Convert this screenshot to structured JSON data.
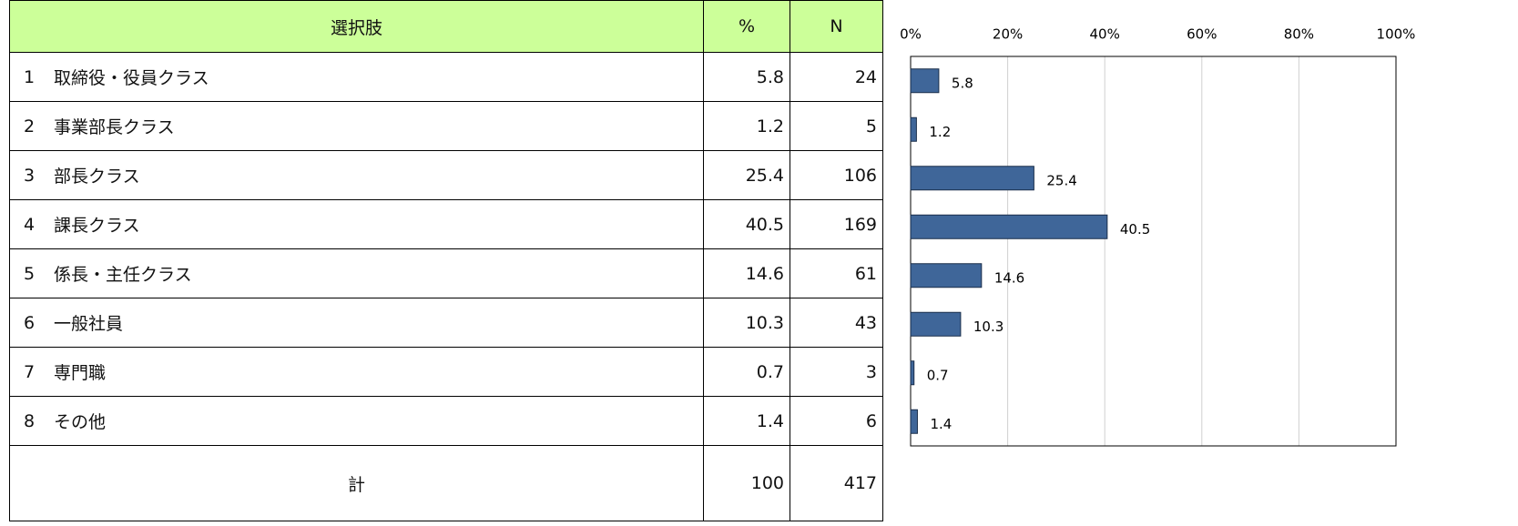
{
  "table": {
    "headers": [
      "選択肢",
      "%",
      "N"
    ],
    "rows": [
      {
        "no": 1,
        "label": "取締役・役員クラス",
        "n": 24
      },
      {
        "no": 2,
        "label": "事業部長クラス",
        "n": 5
      },
      {
        "no": 3,
        "label": "部長クラス",
        "n": 106
      },
      {
        "no": 4,
        "label": "課長クラス",
        "n": 169
      },
      {
        "no": 5,
        "label": "係長・主任クラス",
        "n": 61
      },
      {
        "no": 6,
        "label": "一般社員",
        "n": 43
      },
      {
        "no": 7,
        "label": "専門職",
        "n": 3
      },
      {
        "no": 8,
        "label": "その他",
        "n": 6
      }
    ],
    "total": {
      "label": "計",
      "percent": 100,
      "n": 417
    }
  },
  "chart_data": {
    "type": "bar",
    "orientation": "horizontal",
    "values": [
      5.8,
      1.2,
      25.4,
      40.5,
      14.6,
      10.3,
      0.7,
      1.4
    ],
    "color": "#3f6699",
    "xlim": [
      0,
      100
    ],
    "xticks": [
      {
        "value": 0,
        "label": "0%"
      },
      {
        "value": 20,
        "label": "20%"
      },
      {
        "value": 40,
        "label": "40%"
      },
      {
        "value": 60,
        "label": "60%"
      },
      {
        "value": 80,
        "label": "80%"
      },
      {
        "value": 100,
        "label": "100%"
      }
    ],
    "grid": true
  }
}
